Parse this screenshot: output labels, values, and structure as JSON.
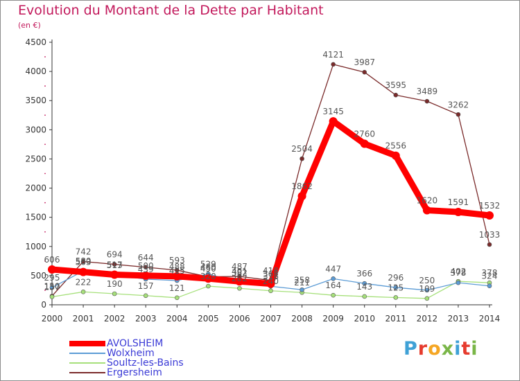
{
  "title": "Evolution du Montant de la Dette par Habitant",
  "subtitle": "(en €)",
  "logo": {
    "text": "Proxiti",
    "letters": [
      {
        "char": "P",
        "color": "#3fa1d6"
      },
      {
        "char": "r",
        "color": "#e63b2e"
      },
      {
        "char": "o",
        "color": "#f5a623"
      },
      {
        "char": "x",
        "color": "#7ab648"
      },
      {
        "char": "i",
        "color": "#3fa1d6"
      },
      {
        "char": "t",
        "color": "#e63b2e"
      },
      {
        "char": "i",
        "color": "#7ab648"
      }
    ]
  },
  "chart_data": {
    "type": "line",
    "x": [
      "2000",
      "2001",
      "2002",
      "2003",
      "2004",
      "2005",
      "2006",
      "2007",
      "2008",
      "2009",
      "2010",
      "2011",
      "2012",
      "2013",
      "2014"
    ],
    "ylim": [
      0,
      4500
    ],
    "yticks": [
      0,
      500,
      1000,
      1500,
      2000,
      2500,
      3000,
      3500,
      4000,
      4500
    ],
    "grid": false,
    "legend_position": "bottom-left",
    "series": [
      {
        "name": "AVOLSHEIM",
        "color": "#ff0000",
        "width": 9,
        "marker": 6,
        "values": [
          606,
          563,
          517,
          500,
          488,
          450,
          401,
          361,
          1862,
          3145,
          2760,
          2556,
          1620,
          1591,
          1532
        ]
      },
      {
        "name": "Wolxheim",
        "color": "#5b9bd5",
        "width": 1.3,
        "marker": 3,
        "values": [
          295,
          580,
          513,
          439,
          415,
          529,
          382,
          318,
          258,
          447,
          366,
          296,
          250,
          378,
          324
        ]
      },
      {
        "name": "Soultz-les-Bains",
        "color": "#a6e07a",
        "width": 1.3,
        "marker": 3,
        "values": [
          137,
          222,
          190,
          157,
          121,
          320,
          282,
          240,
          211,
          164,
          143,
          125,
          109,
          402,
          378
        ]
      },
      {
        "name": "Ergersheim",
        "color": "#7a2a2a",
        "width": 1.3,
        "marker": 3,
        "values": [
          150,
          742,
          694,
          644,
          593,
          480,
          487,
          418,
          2504,
          4121,
          3987,
          3595,
          3489,
          3262,
          1033
        ]
      }
    ]
  }
}
